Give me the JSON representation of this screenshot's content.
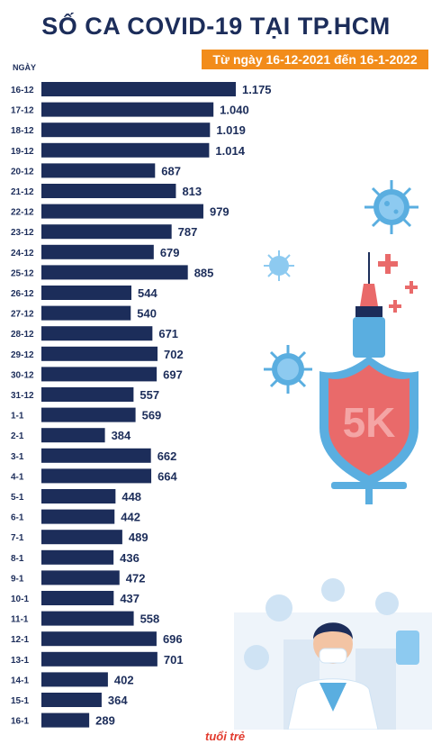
{
  "header": {
    "title": "SỐ CA COVID-19 TẠI TP.HCM",
    "subtitle": "Từ ngày 16-12-2021 đến 16-1-2022",
    "axis_label": "NGÀY"
  },
  "illustration": {
    "shield_text": "5K"
  },
  "branding": {
    "logo": "tuổi trẻ"
  },
  "colors": {
    "bar": "#1c2d5a",
    "accent": "#f28c1a",
    "virus": "#5aaee0",
    "shield": "#e96a6a"
  },
  "chart_data": {
    "type": "bar",
    "orientation": "horizontal",
    "categories": [
      "16-12",
      "17-12",
      "18-12",
      "19-12",
      "20-12",
      "21-12",
      "22-12",
      "23-12",
      "24-12",
      "25-12",
      "26-12",
      "27-12",
      "28-12",
      "29-12",
      "30-12",
      "31-12",
      "1-1",
      "2-1",
      "3-1",
      "4-1",
      "5-1",
      "6-1",
      "7-1",
      "8-1",
      "9-1",
      "10-1",
      "11-1",
      "12-1",
      "13-1",
      "14-1",
      "15-1",
      "16-1"
    ],
    "values": [
      1175,
      1040,
      1019,
      1014,
      687,
      813,
      979,
      787,
      679,
      885,
      544,
      540,
      671,
      702,
      697,
      557,
      569,
      384,
      662,
      664,
      448,
      442,
      489,
      436,
      472,
      437,
      558,
      696,
      701,
      402,
      364,
      289
    ],
    "value_labels": [
      "1.175",
      "1.040",
      "1.019",
      "1.014",
      "687",
      "813",
      "979",
      "787",
      "679",
      "885",
      "544",
      "540",
      "671",
      "702",
      "697",
      "557",
      "569",
      "384",
      "662",
      "664",
      "448",
      "442",
      "489",
      "436",
      "472",
      "437",
      "558",
      "696",
      "701",
      "402",
      "364",
      "289"
    ],
    "title": "SỐ CA COVID-19 TẠI TP.HCM",
    "subtitle": "Từ ngày 16-12-2021 đến 16-1-2022",
    "ylabel": "NGÀY",
    "xlim": [
      0,
      1175
    ],
    "grid": false
  }
}
